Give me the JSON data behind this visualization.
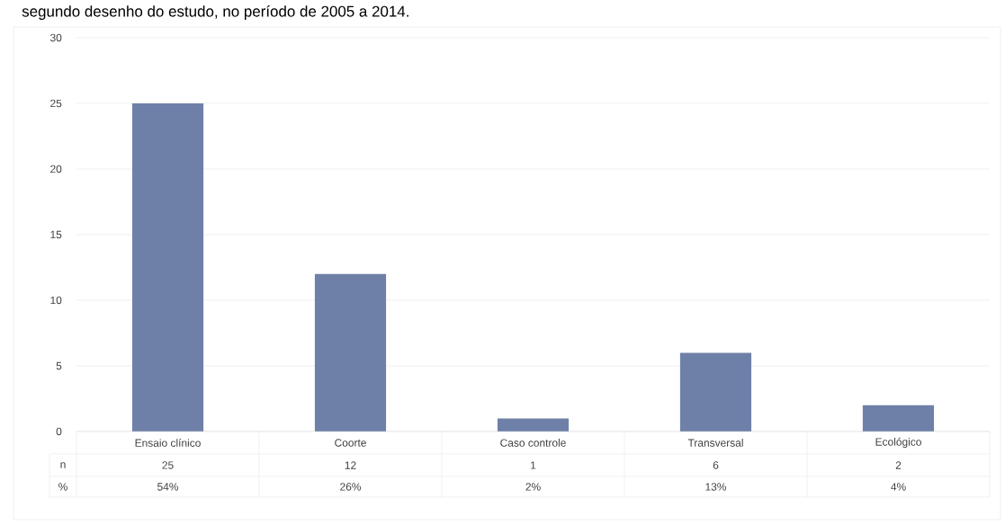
{
  "chart_data": {
    "type": "bar",
    "title": "segundo desenho do estudo, no período de 2005 a 2014.",
    "categories": [
      "Ensaio clínico",
      "Coorte",
      "Caso controle",
      "Transversal",
      "Ecológico"
    ],
    "values": [
      25,
      12,
      1,
      6,
      2
    ],
    "color": "#6f80a8",
    "data_labels": true,
    "annotations": [
      "n",
      "%",
      "54%",
      "26%",
      "2%",
      "13%",
      "4%"
    ],
    "ylim": [
      0,
      30
    ],
    "yticks": [
      0,
      5,
      10,
      15,
      20,
      25,
      30
    ],
    "grid": "y"
  }
}
